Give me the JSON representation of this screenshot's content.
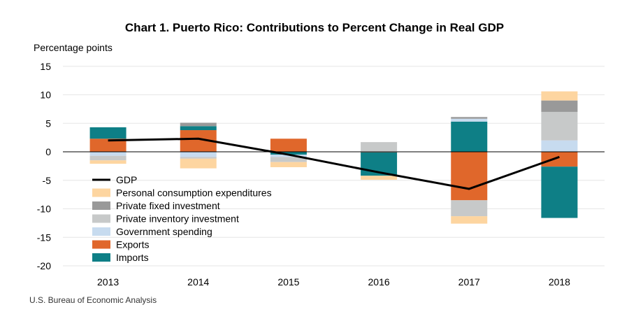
{
  "title": "Chart 1. Puerto Rico: Contributions to Percent Change in Real GDP",
  "y_axis_label": "Percentage points",
  "source": "U.S. Bureau of Economic Analysis",
  "colors": {
    "gdp": "#000000",
    "pce": "#fdd5a0",
    "fixed": "#999999",
    "inventory": "#c7c9c9",
    "government": "#c7dbef",
    "exports": "#e0672b",
    "imports": "#0e7f86"
  },
  "chart_data": {
    "type": "bar",
    "stacked": true,
    "categories": [
      "2013",
      "2014",
      "2015",
      "2016",
      "2017",
      "2018"
    ],
    "ylim": [
      -20,
      15
    ],
    "yticks": [
      15,
      10,
      5,
      0,
      -5,
      -10,
      -15,
      -20
    ],
    "series": [
      {
        "key": "pce",
        "name": "Personal consumption expenditures",
        "values": [
          -0.6,
          -1.7,
          -0.9,
          -0.7,
          -1.3,
          1.6
        ]
      },
      {
        "key": "fixed",
        "name": "Private fixed investment",
        "values": [
          0,
          0.6,
          0,
          0,
          0.3,
          2.0
        ]
      },
      {
        "key": "inventory",
        "name": "Private inventory investment",
        "values": [
          -0.8,
          -0.3,
          -0.9,
          1.6,
          -2.8,
          5.0
        ]
      },
      {
        "key": "government",
        "name": "Government spending",
        "values": [
          -0.7,
          -0.9,
          -0.4,
          0.1,
          0.5,
          2.0
        ]
      },
      {
        "key": "exports",
        "name": "Exports",
        "values": [
          2.3,
          3.8,
          2.3,
          -0.1,
          -8.5,
          -2.6
        ]
      },
      {
        "key": "imports",
        "name": "Imports",
        "values": [
          2.0,
          0.7,
          -0.5,
          -4.1,
          5.3,
          -9.0
        ]
      }
    ],
    "line": {
      "key": "gdp",
      "name": "GDP",
      "values": [
        2.0,
        2.3,
        -0.5,
        -3.6,
        -6.5,
        -0.9
      ]
    },
    "legend_order": [
      "gdp",
      "pce",
      "fixed",
      "inventory",
      "government",
      "exports",
      "imports"
    ],
    "legend_position": "lower-left inside plot"
  }
}
